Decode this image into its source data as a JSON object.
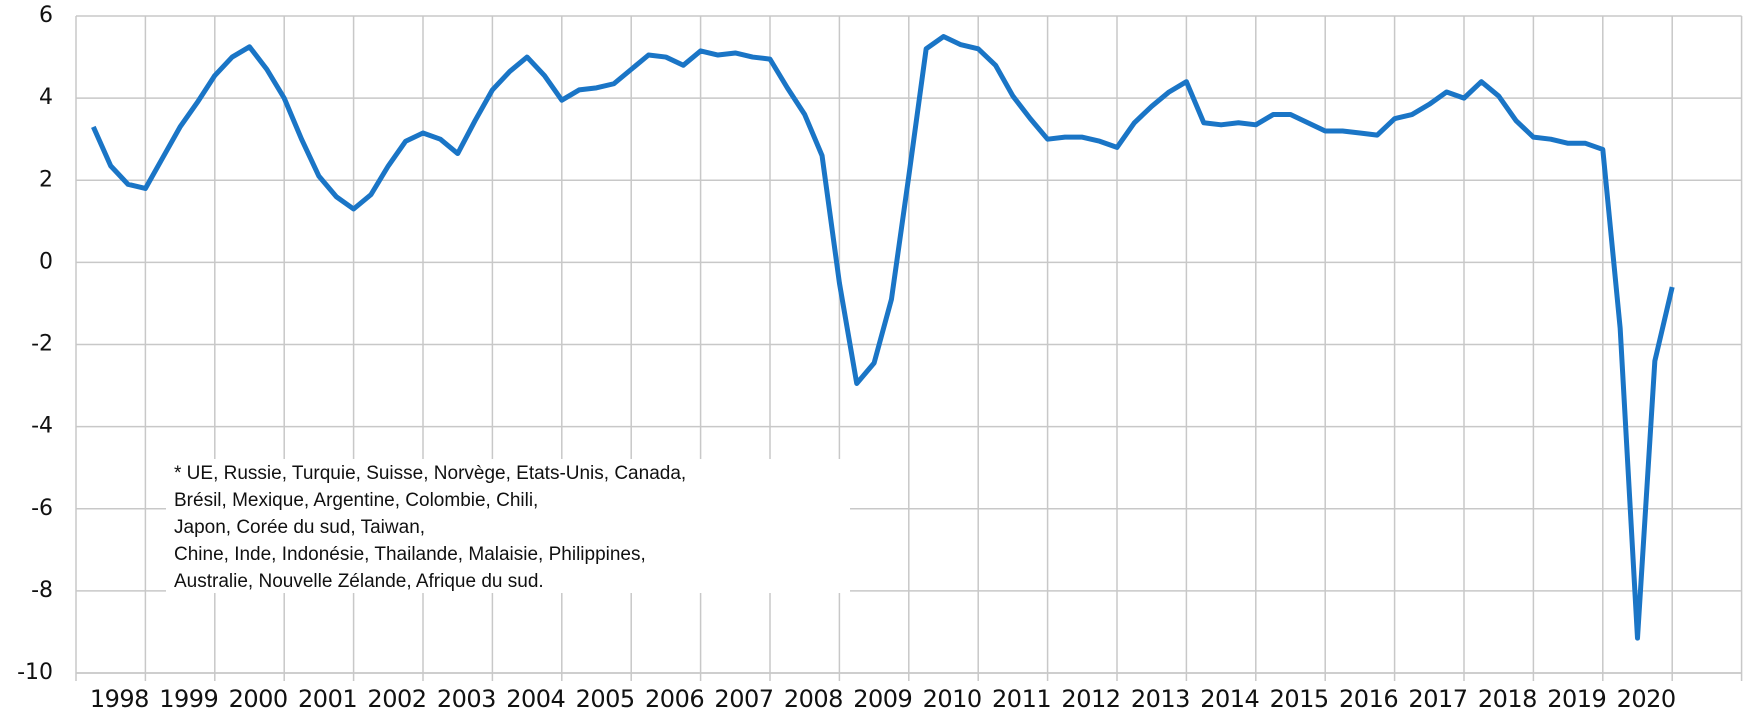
{
  "chart_data": {
    "type": "line",
    "categories": [
      null,
      "1998",
      null,
      null,
      null,
      "1999",
      null,
      null,
      null,
      "2000",
      null,
      null,
      null,
      "2001",
      null,
      null,
      null,
      "2002",
      null,
      null,
      null,
      "2003",
      null,
      null,
      null,
      "2004",
      null,
      null,
      null,
      "2005",
      null,
      null,
      null,
      "2006",
      null,
      null,
      null,
      "2007",
      null,
      null,
      null,
      "2008",
      null,
      null,
      null,
      "2009",
      null,
      null,
      null,
      "2010",
      null,
      null,
      null,
      "2011",
      null,
      null,
      null,
      "2012",
      null,
      null,
      null,
      "2013",
      null,
      null,
      null,
      "2014",
      null,
      null,
      null,
      "2015",
      null,
      null,
      null,
      "2016",
      null,
      null,
      null,
      "2017",
      null,
      null,
      null,
      "2018",
      null,
      null,
      null,
      "2019",
      null,
      null,
      null,
      "2020",
      null,
      null
    ],
    "series": [
      {
        "color": "#1a75c6",
        "values": [
          3.3,
          2.35,
          1.9,
          1.8,
          2.55,
          3.3,
          3.9,
          4.55,
          5.0,
          5.25,
          4.7,
          4.0,
          3.0,
          2.1,
          1.6,
          1.3,
          1.65,
          2.35,
          2.95,
          3.15,
          3.0,
          2.65,
          3.45,
          4.2,
          4.65,
          5.0,
          4.55,
          3.95,
          4.2,
          4.25,
          4.35,
          4.7,
          5.05,
          5.0,
          4.8,
          5.15,
          5.05,
          5.1,
          5.0,
          4.95,
          4.25,
          3.6,
          2.6,
          -0.5,
          -2.95,
          -2.45,
          -0.9,
          2.1,
          5.2,
          5.5,
          5.3,
          5.2,
          4.8,
          4.05,
          3.5,
          3.0,
          3.05,
          3.05,
          2.95,
          2.8,
          3.4,
          3.8,
          4.15,
          4.4,
          3.4,
          3.35,
          3.4,
          3.35,
          3.6,
          3.6,
          3.4,
          3.2,
          3.2,
          3.15,
          3.1,
          3.5,
          3.6,
          3.85,
          4.15,
          4.0,
          4.4,
          4.05,
          3.45,
          3.05,
          3.0,
          2.9,
          2.9,
          2.75,
          -1.6,
          -9.15,
          -2.4,
          -0.6
        ]
      }
    ],
    "ylim": [
      -10,
      6
    ],
    "yticks": [
      -10,
      -8,
      -6,
      -4,
      -2,
      0,
      2,
      4,
      6
    ],
    "grid": true,
    "note": [
      "* UE, Russie, Turquie, Suisse, Norvège, Etats-Unis, Canada,",
      "Brésil, Mexique, Argentine, Colombie, Chili,",
      "Japon, Corée du sud, Taiwan,",
      "Chine, Inde, Indonésie, Thailande, Malaisie, Philippines,",
      "Australie, Nouvelle Zélande, Afrique du sud."
    ]
  }
}
